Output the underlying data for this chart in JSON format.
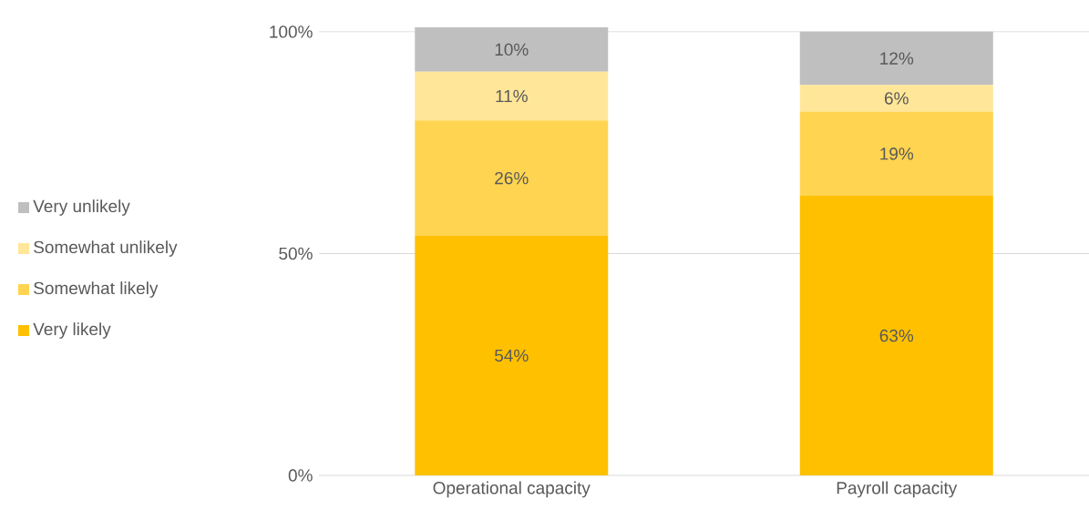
{
  "chart_data": {
    "type": "bar",
    "stacked": true,
    "categories": [
      "Operational capacity",
      "Payroll capacity"
    ],
    "series": [
      {
        "name": "Very likely",
        "color": "#ffc000",
        "values": [
          54,
          63
        ],
        "value_labels": [
          "54%",
          "63%"
        ]
      },
      {
        "name": "Somewhat likely",
        "color": "#ffd450",
        "values": [
          26,
          19
        ],
        "value_labels": [
          "26%",
          "19%"
        ]
      },
      {
        "name": "Somewhat unlikely",
        "color": "#ffe699",
        "values": [
          11,
          6
        ],
        "value_labels": [
          "11%",
          "6%"
        ]
      },
      {
        "name": "Very unlikely",
        "color": "#bfbfbf",
        "values": [
          10,
          12
        ],
        "value_labels": [
          "10%",
          "12%"
        ]
      }
    ],
    "ylim": [
      0,
      101
    ],
    "yticks": [
      {
        "value": 0,
        "label": "0%"
      },
      {
        "value": 50,
        "label": "50%"
      },
      {
        "value": 100,
        "label": "100%"
      }
    ],
    "grid": "y",
    "legend": "left"
  }
}
